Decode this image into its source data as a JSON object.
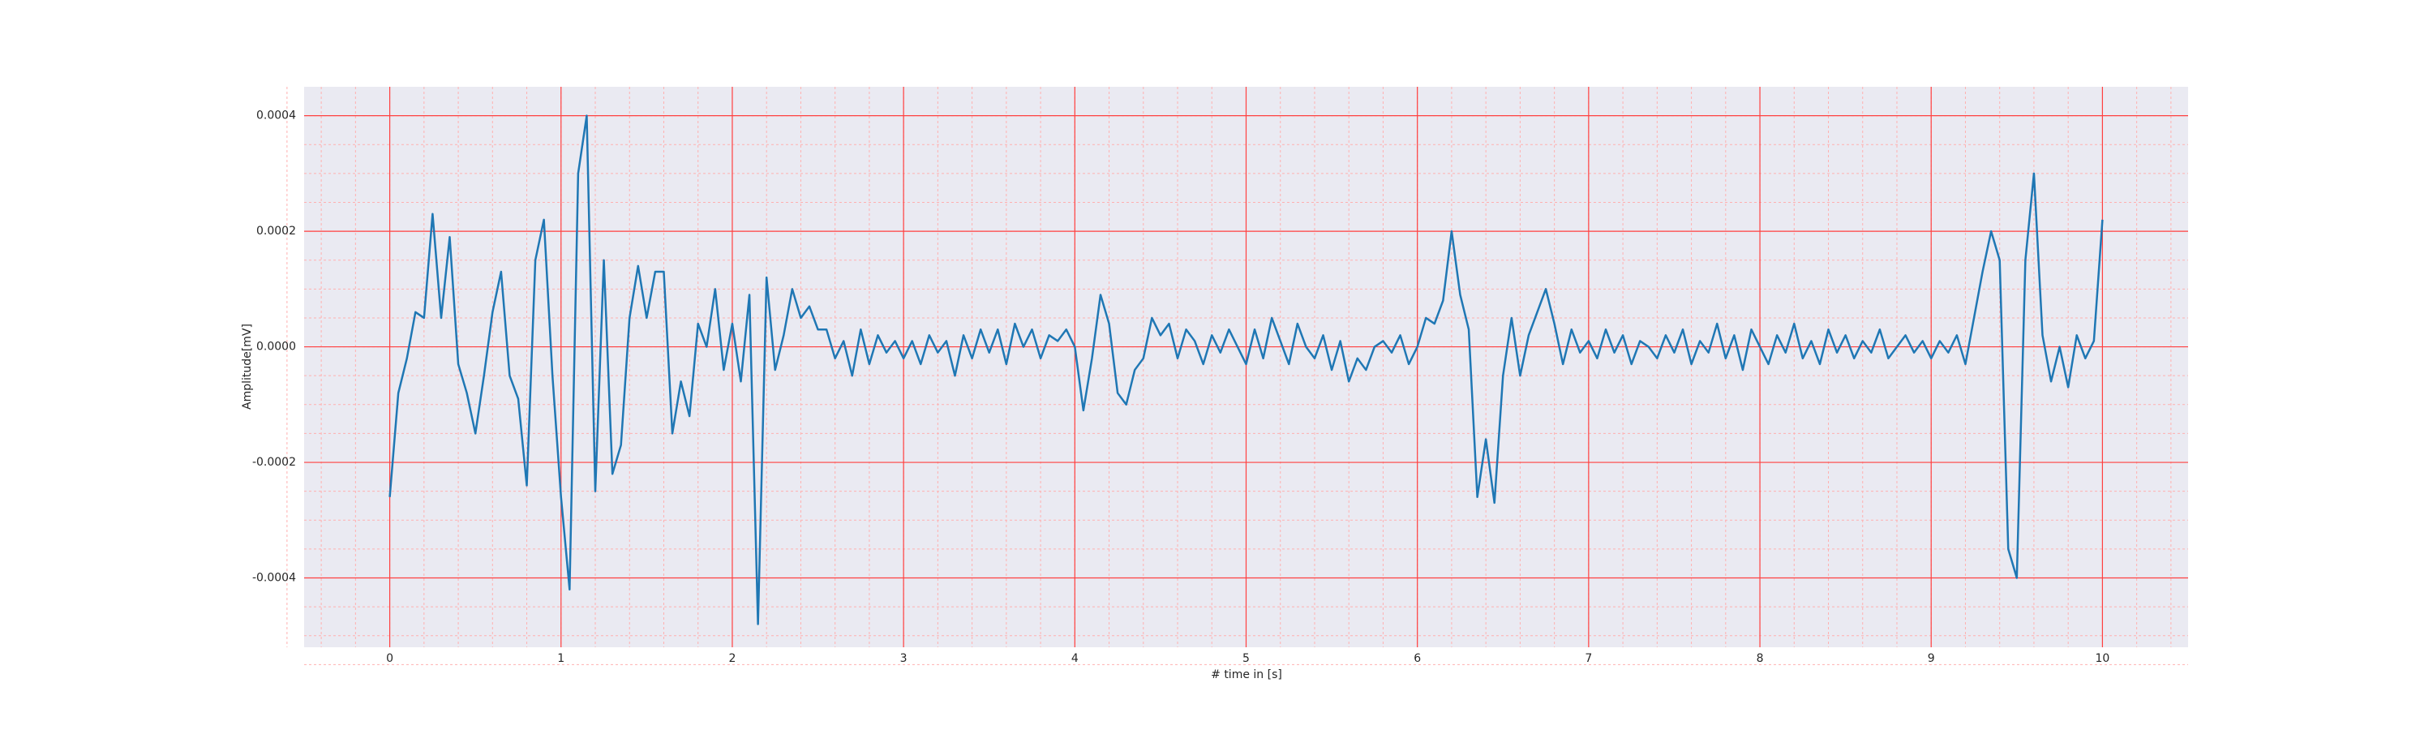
{
  "chart_data": {
    "type": "line",
    "xlabel": "# time in [s]",
    "ylabel": "Amplitude[mV]",
    "x": [
      0,
      0.05,
      0.1,
      0.15,
      0.2,
      0.25,
      0.3,
      0.35,
      0.4,
      0.45,
      0.5,
      0.55,
      0.6,
      0.65,
      0.7,
      0.75,
      0.8,
      0.85,
      0.9,
      0.95,
      1,
      1.05,
      1.1,
      1.15,
      1.2,
      1.25,
      1.3,
      1.35,
      1.4,
      1.45,
      1.5,
      1.55,
      1.6,
      1.65,
      1.7,
      1.75,
      1.8,
      1.85,
      1.9,
      1.95,
      2,
      2.05,
      2.1,
      2.15,
      2.2,
      2.25,
      2.3,
      2.35,
      2.4,
      2.45,
      2.5,
      2.55,
      2.6,
      2.65,
      2.7,
      2.75,
      2.8,
      2.85,
      2.9,
      2.95,
      3,
      3.05,
      3.1,
      3.15,
      3.2,
      3.25,
      3.3,
      3.35,
      3.4,
      3.45,
      3.5,
      3.55,
      3.6,
      3.65,
      3.7,
      3.75,
      3.8,
      3.85,
      3.9,
      3.95,
      4,
      4.05,
      4.1,
      4.15,
      4.2,
      4.25,
      4.3,
      4.35,
      4.4,
      4.45,
      4.5,
      4.55,
      4.6,
      4.65,
      4.7,
      4.75,
      4.8,
      4.85,
      4.9,
      4.95,
      5,
      5.05,
      5.1,
      5.15,
      5.2,
      5.25,
      5.3,
      5.35,
      5.4,
      5.45,
      5.5,
      5.55,
      5.6,
      5.65,
      5.7,
      5.75,
      5.8,
      5.85,
      5.9,
      5.95,
      6,
      6.05,
      6.1,
      6.15,
      6.2,
      6.25,
      6.3,
      6.35,
      6.4,
      6.45,
      6.5,
      6.55,
      6.6,
      6.65,
      6.7,
      6.75,
      6.8,
      6.85,
      6.9,
      6.95,
      7,
      7.05,
      7.1,
      7.15,
      7.2,
      7.25,
      7.3,
      7.35,
      7.4,
      7.45,
      7.5,
      7.55,
      7.6,
      7.65,
      7.7,
      7.75,
      7.8,
      7.85,
      7.9,
      7.95,
      8,
      8.05,
      8.1,
      8.15,
      8.2,
      8.25,
      8.3,
      8.35,
      8.4,
      8.45,
      8.5,
      8.55,
      8.6,
      8.65,
      8.7,
      8.75,
      8.8,
      8.85,
      8.9,
      8.95,
      9,
      9.05,
      9.1,
      9.15,
      9.2,
      9.25,
      9.3,
      9.35,
      9.4,
      9.45,
      9.5,
      9.55,
      9.6,
      9.65,
      9.7,
      9.75,
      9.8,
      9.85,
      9.9,
      9.95,
      10
    ],
    "series": [
      {
        "color": "#1f77b4",
        "values": [
          -0.00026,
          -8e-05,
          -2e-05,
          6e-05,
          5e-05,
          0.00023,
          5e-05,
          0.00019,
          -3e-05,
          -8e-05,
          -0.00015,
          -5e-05,
          6e-05,
          0.00013,
          -5e-05,
          -9e-05,
          -0.00024,
          0.00015,
          0.00022,
          -5e-05,
          -0.00026,
          -0.00042,
          0.0003,
          0.0004,
          -0.00025,
          0.00015,
          -0.00022,
          -0.00017,
          5e-05,
          0.00014,
          5e-05,
          0.00013,
          0.00013,
          -0.00015,
          -6e-05,
          -0.00012,
          4e-05,
          0,
          0.0001,
          -4e-05,
          4e-05,
          -6e-05,
          9e-05,
          -0.00048,
          0.00012,
          -4e-05,
          2e-05,
          0.0001,
          5e-05,
          7e-05,
          3e-05,
          3e-05,
          -2e-05,
          1e-05,
          -5e-05,
          3e-05,
          -3e-05,
          2e-05,
          -1e-05,
          1e-05,
          -2e-05,
          1e-05,
          -3e-05,
          2e-05,
          -1e-05,
          1e-05,
          -5e-05,
          2e-05,
          -2e-05,
          3e-05,
          -1e-05,
          3e-05,
          -3e-05,
          4e-05,
          0,
          3e-05,
          -2e-05,
          2e-05,
          1e-05,
          3e-05,
          0,
          -0.00011,
          -2e-05,
          9e-05,
          4e-05,
          -8e-05,
          -0.0001,
          -4e-05,
          -2e-05,
          5e-05,
          2e-05,
          4e-05,
          -2e-05,
          3e-05,
          1e-05,
          -3e-05,
          2e-05,
          -1e-05,
          3e-05,
          0,
          -3e-05,
          3e-05,
          -2e-05,
          5e-05,
          1e-05,
          -3e-05,
          4e-05,
          0,
          -2e-05,
          2e-05,
          -4e-05,
          1e-05,
          -6e-05,
          -2e-05,
          -4e-05,
          0,
          1e-05,
          -1e-05,
          2e-05,
          -3e-05,
          0,
          5e-05,
          4e-05,
          8e-05,
          0.0002,
          9e-05,
          3e-05,
          -0.00026,
          -0.00016,
          -0.00027,
          -5e-05,
          5e-05,
          -5e-05,
          2e-05,
          6e-05,
          0.0001,
          4e-05,
          -3e-05,
          3e-05,
          -1e-05,
          1e-05,
          -2e-05,
          3e-05,
          -1e-05,
          2e-05,
          -3e-05,
          1e-05,
          0,
          -2e-05,
          2e-05,
          -1e-05,
          3e-05,
          -3e-05,
          1e-05,
          -1e-05,
          4e-05,
          -2e-05,
          2e-05,
          -4e-05,
          3e-05,
          0,
          -3e-05,
          2e-05,
          -1e-05,
          4e-05,
          -2e-05,
          1e-05,
          -3e-05,
          3e-05,
          -1e-05,
          2e-05,
          -2e-05,
          1e-05,
          -1e-05,
          3e-05,
          -2e-05,
          0,
          2e-05,
          -1e-05,
          1e-05,
          -2e-05,
          1e-05,
          -1e-05,
          2e-05,
          -3e-05,
          5e-05,
          0.00013,
          0.0002,
          0.00015,
          -0.00035,
          -0.0004,
          0.00015,
          0.0003,
          2e-05,
          -6e-05,
          0,
          -7e-05,
          2e-05,
          -2e-05,
          1e-05,
          0.00022
        ]
      }
    ],
    "xlim": [
      -0.5,
      10.5
    ],
    "xticks": [
      0,
      1,
      2,
      3,
      4,
      5,
      6,
      7,
      8,
      9,
      10
    ],
    "ylim": [
      -0.00052,
      0.00045
    ],
    "yticks": [
      -0.0004,
      -0.0002,
      {
        "value": 0,
        "label": "0.0000"
      },
      0.0002,
      0.0004
    ],
    "grid": true,
    "minor_grid": true
  }
}
